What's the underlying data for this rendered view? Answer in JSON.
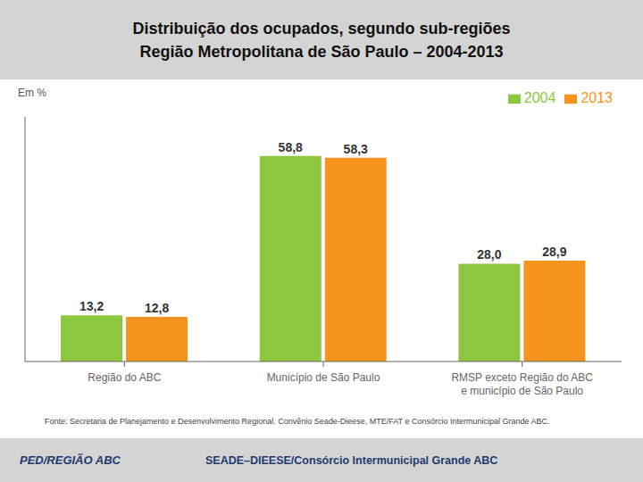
{
  "chart_data": {
    "type": "bar",
    "title": "Distribuição dos ocupados, segundo sub-regiões",
    "subtitle": "Região Metropolitana de São Paulo – 2004-2013",
    "ylabel": "Em %",
    "categories": [
      "Região do ABC",
      "Município de São Paulo",
      "RMSP exceto Região do ABC\ne município de São Paulo"
    ],
    "series": [
      {
        "name": "2004",
        "color": "#8dc63f",
        "values": [
          13.2,
          58.8,
          28.0
        ],
        "value_labels": [
          "13,2",
          "58,8",
          "28,0"
        ]
      },
      {
        "name": "2013",
        "color": "#f7941d",
        "values": [
          12.8,
          58.3,
          28.9
        ],
        "value_labels": [
          "12,8",
          "58,3",
          "28,9"
        ]
      }
    ],
    "ylim": [
      0,
      70
    ],
    "grid": false,
    "legend": "upper right",
    "data_labels": true,
    "tick_labels": "x",
    "annotations": [
      "PED/REGIÃO ABC",
      "SEADE–DIEESE/Consórcio Intermunicipal Grande ABC",
      "Fonte: Secretaria de Planejamento e Desenvolvimento Regional. Convênio Seade-Dieese, MTE/FAT e Consórcio Intermunicipal Grande ABC."
    ]
  }
}
